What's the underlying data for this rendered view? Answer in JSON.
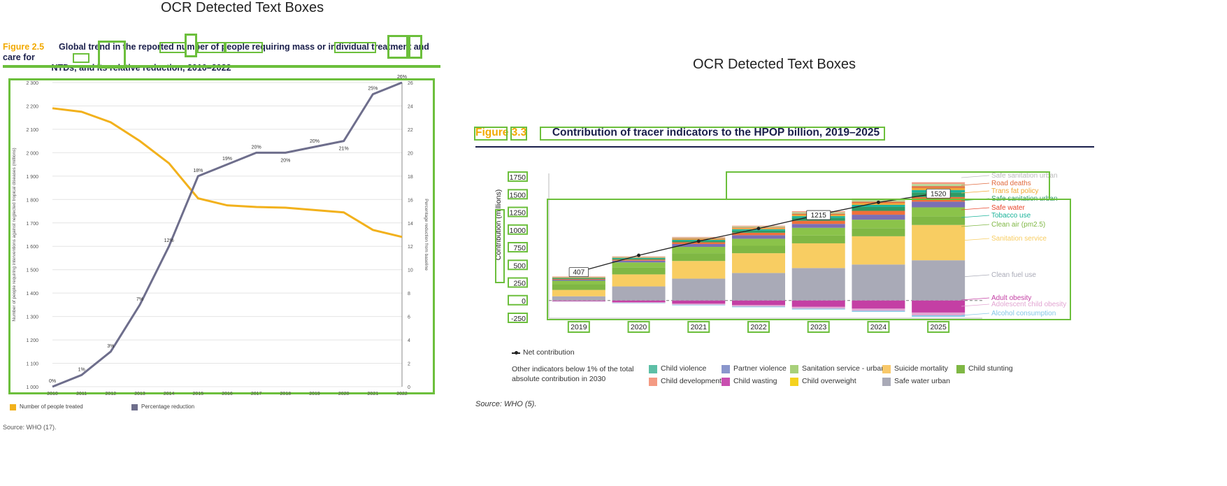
{
  "panels": {
    "left": {
      "heading": "OCR Detected Text Boxes",
      "figure_number": "Figure 2.5",
      "figure_title_line1": "Global trend in the reported number of people requiring mass or individual treatment and care for",
      "figure_title_line2": "NTDs, and its relative reduction, 2010–2022",
      "source": "Source: WHO (17)."
    },
    "right": {
      "heading": "OCR Detected Text Boxes",
      "figure_number": "Figure 3.3",
      "figure_title": "Contribution of tracer indicators to the HPOP billion, 2019–2025",
      "source": "Source: WHO (5)."
    }
  },
  "chart_data": [
    {
      "type": "line",
      "x": [
        "2010",
        "2011",
        "2012",
        "2013",
        "2014",
        "2015",
        "2016",
        "2017",
        "2018",
        "2019",
        "2020",
        "2021",
        "2022"
      ],
      "ylabel": "Number of people requiring interventions against neglected tropical diseases (millions)",
      "y2label": "Percentage reduction from baseline",
      "ylim": [
        1000,
        2300
      ],
      "y2lim": [
        0,
        26
      ],
      "yticks": [
        "1 000",
        "1 100",
        "1 200",
        "1 300",
        "1 400",
        "1 500",
        "1 600",
        "1 700",
        "1 800",
        "1 900",
        "2 000",
        "2 100",
        "2 200",
        "2 300"
      ],
      "y2ticks": [
        "0",
        "2",
        "4",
        "6",
        "8",
        "10",
        "12",
        "14",
        "16",
        "18",
        "20",
        "22",
        "24",
        "26"
      ],
      "grid": true,
      "legend_position": "bottom-left",
      "series": [
        {
          "name": "Number of people treated",
          "axis": "left",
          "color": "#f2b11c",
          "values": [
            2190,
            2175,
            2130,
            2050,
            1955,
            1805,
            1775,
            1768,
            1765,
            1755,
            1745,
            1670,
            1640
          ]
        },
        {
          "name": "Percentage reduction",
          "axis": "right",
          "color": "#6e6e8c",
          "values": [
            0,
            1,
            3,
            7,
            12,
            18,
            19,
            20,
            20,
            20.5,
            21,
            25,
            26
          ],
          "labels": [
            "0%",
            "1%",
            "3%",
            "7%",
            "12%",
            "18%",
            "19%",
            "20%",
            "20%",
            "20%",
            "21%",
            "25%",
            "26%"
          ]
        }
      ]
    },
    {
      "type": "bar",
      "stacked": true,
      "categories": [
        "2019",
        "2020",
        "2021",
        "2022",
        "2023",
        "2024",
        "2025"
      ],
      "ylabel": "Contribution (millions)",
      "ylim": [
        -250,
        1800
      ],
      "yticks": [
        "-250",
        "0",
        "250",
        "500",
        "750",
        "1000",
        "1250",
        "1500",
        "1750"
      ],
      "grid": false,
      "legend_position": "bottom",
      "positive_series": [
        {
          "name": "Clean fuel use",
          "color": "#a9aab7",
          "values": [
            60,
            200,
            310,
            390,
            460,
            510,
            570
          ]
        },
        {
          "name": "Sanitation service",
          "color": "#f8cd62",
          "values": [
            90,
            170,
            250,
            280,
            350,
            400,
            500
          ]
        },
        {
          "name": "Clean air (pm2.5)",
          "color": "#7fb744",
          "values": [
            80,
            100,
            110,
            105,
            110,
            115,
            120
          ]
        },
        {
          "name": "Child stunting",
          "color": "#8bc34a",
          "values": [
            50,
            70,
            90,
            100,
            110,
            120,
            130
          ]
        },
        {
          "name": "Safe water",
          "color": "#7b6fb5",
          "values": [
            15,
            25,
            40,
            50,
            55,
            70,
            80
          ]
        },
        {
          "name": "Safe water urban",
          "color": "#f0703a",
          "values": [
            10,
            15,
            25,
            35,
            45,
            55,
            65
          ]
        },
        {
          "name": "Safe sanitation urban",
          "color": "#2f9a63",
          "values": [
            10,
            15,
            20,
            30,
            40,
            55,
            65
          ]
        },
        {
          "name": "Tobacco use",
          "color": "#1bb39a",
          "values": [
            5,
            10,
            15,
            20,
            25,
            30,
            35
          ]
        },
        {
          "name": "Trans fat policy",
          "color": "#f2a734",
          "values": [
            5,
            5,
            10,
            15,
            20,
            25,
            30
          ]
        },
        {
          "name": "Road deaths",
          "color": "#e06a3e",
          "values": [
            5,
            5,
            10,
            10,
            15,
            20,
            25
          ]
        },
        {
          "name": "Sanitation service - urban",
          "color": "#b7d99a",
          "values": [
            5,
            5,
            10,
            15,
            20,
            25,
            30
          ]
        },
        {
          "name": "Child development",
          "color": "#f49a83",
          "values": [
            5,
            5,
            10,
            10,
            15,
            20,
            25
          ]
        }
      ],
      "negative_series": [
        {
          "name": "Adult obesity",
          "color": "#c43fa4",
          "values": [
            -10,
            -25,
            -45,
            -65,
            -90,
            -115,
            -170
          ]
        },
        {
          "name": "Adolescent child obesity",
          "color": "#e2a6d2",
          "values": [
            -5,
            -10,
            -15,
            -20,
            -25,
            -30,
            -40
          ]
        },
        {
          "name": "Alcohol consumption",
          "color": "#86c7e6",
          "values": [
            -2,
            -5,
            -8,
            -10,
            -12,
            -15,
            -20
          ]
        }
      ],
      "net_contribution": {
        "name": "Net contribution",
        "values": [
          407,
          640,
          840,
          1020,
          1215,
          1390,
          1520
        ],
        "labels": {
          "0": "407",
          "4": "1215",
          "6": "1520"
        }
      },
      "right_labels": [
        "Safe sanitation urban",
        "Road deaths",
        "Trans fat policy",
        "Safe sanitation urban",
        "Safe water",
        "Tobacco use",
        "Clean air (pm2.5)",
        "Sanitation service",
        "Clean fuel use",
        "Adult obesity",
        "Adolescent child obesity",
        "Alcohol consumption"
      ],
      "legend": {
        "net": "Net contribution",
        "other_line1": "Other indicators below 1% of the total",
        "other_line2": "absolute contribution in 2030",
        "items": [
          {
            "name": "Child violence",
            "color": "#5dbfa6"
          },
          {
            "name": "Child development",
            "color": "#f49a83"
          },
          {
            "name": "Partner violence",
            "color": "#8a96cc"
          },
          {
            "name": "Child wasting",
            "color": "#c94fb0"
          },
          {
            "name": "Sanitation service - urban",
            "color": "#a8d07a"
          },
          {
            "name": "Child overweight",
            "color": "#f5d21e"
          },
          {
            "name": "Suicide mortality",
            "color": "#f8c86a"
          },
          {
            "name": "Safe water urban",
            "color": "#a9aab7"
          },
          {
            "name": "Child stunting",
            "color": "#7fb744"
          }
        ]
      }
    }
  ]
}
